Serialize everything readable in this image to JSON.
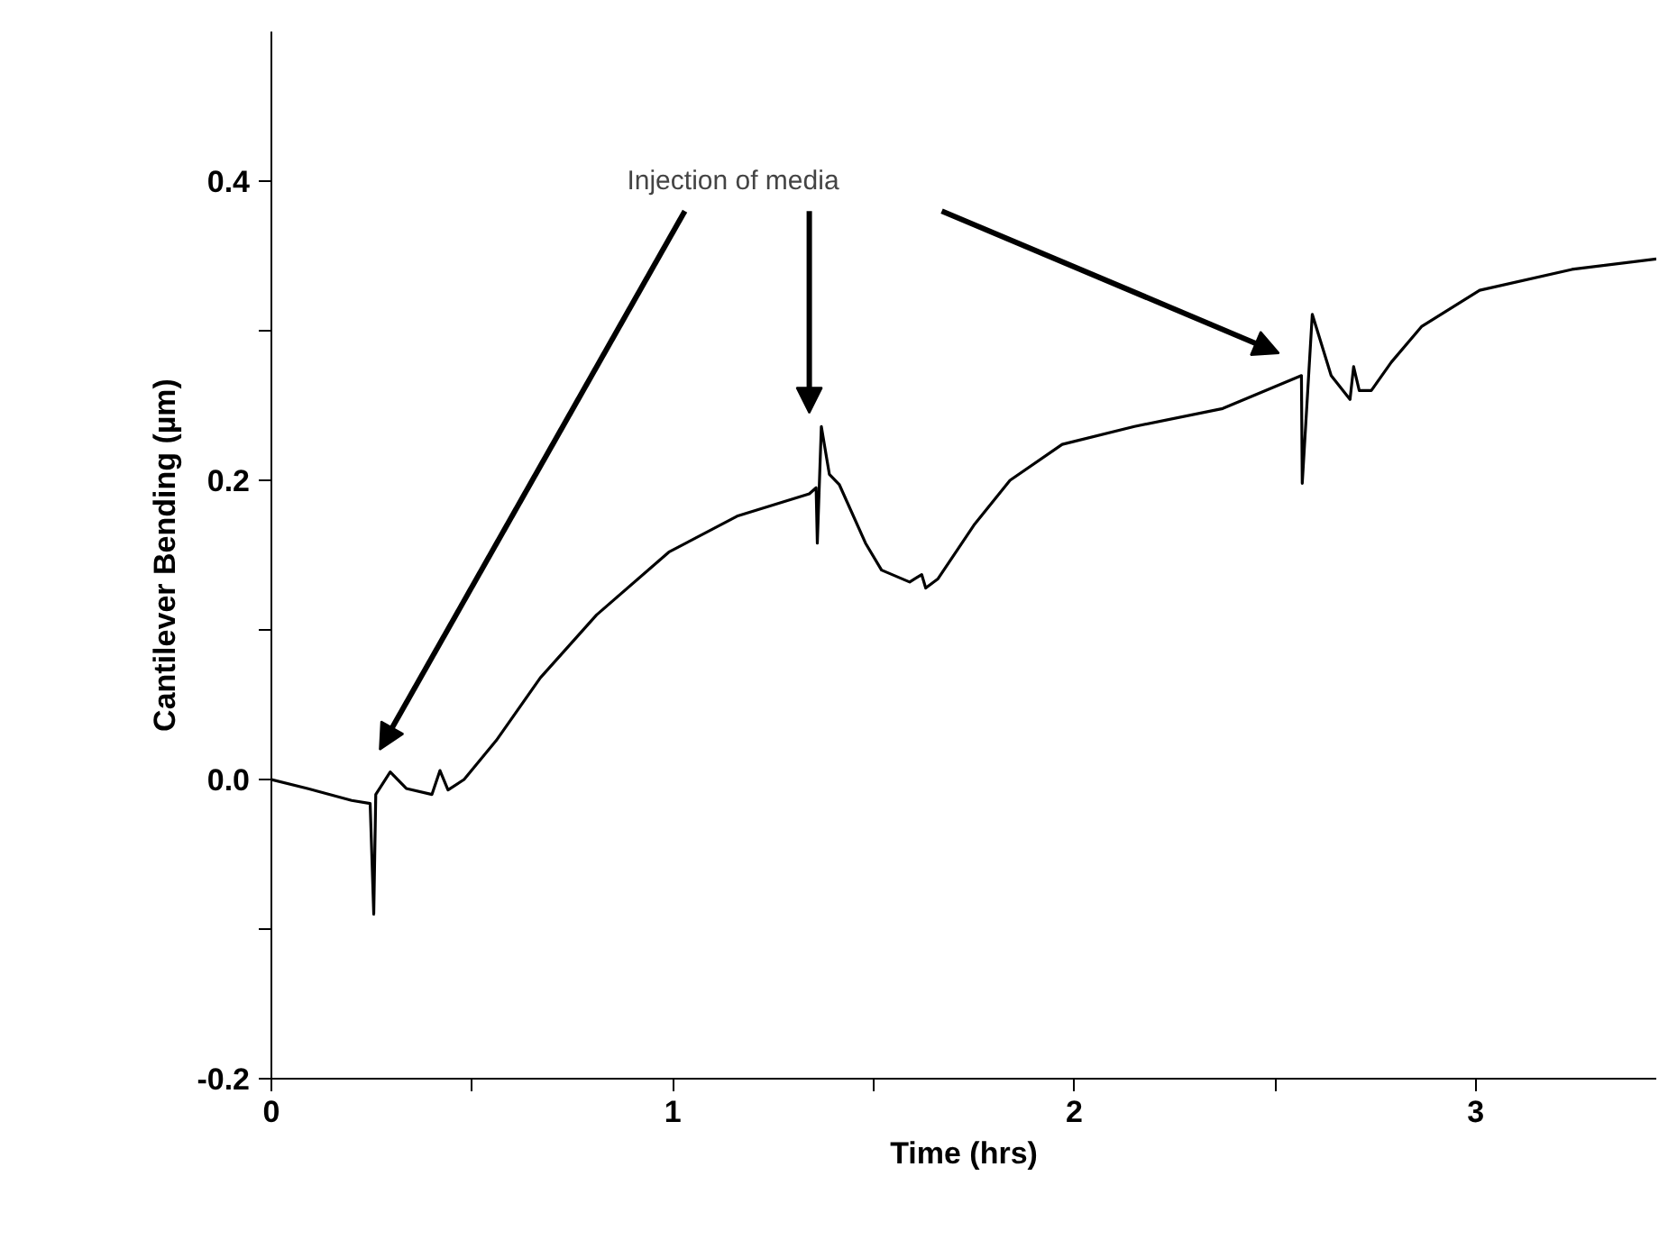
{
  "chart_data": {
    "type": "line",
    "xlabel": "Time (hrs)",
    "ylabel": "Cantilever Bending (µm)",
    "annotations": [
      "Injection of media"
    ],
    "xlim": [
      0,
      3.45
    ],
    "ylim": [
      -0.2,
      0.5
    ],
    "xticks": [
      0,
      {
        "value": 0.5,
        "label": null
      },
      1,
      {
        "value": 1.5,
        "label": null
      },
      2,
      {
        "value": 2.5,
        "label": null
      },
      3
    ],
    "yticks": [
      {
        "value": -0.2,
        "label": "-0.2"
      },
      {
        "value": -0.1,
        "label": null
      },
      {
        "value": 0,
        "label": "0.0"
      },
      {
        "value": 0.1,
        "label": null
      },
      0.2,
      {
        "value": 0.3,
        "label": null
      },
      0.4
    ],
    "grid": false,
    "marker": "none",
    "line_style": "solid",
    "series": [
      {
        "color": "#000000",
        "x": [
          0,
          0.09,
          0.2,
          0.246,
          0.255,
          0.26,
          0.296,
          0.336,
          0.4,
          0.42,
          0.44,
          0.48,
          0.56,
          0.67,
          0.81,
          0.99,
          1.16,
          1.34,
          1.357,
          1.36,
          1.37,
          1.39,
          1.415,
          1.48,
          1.52,
          1.59,
          1.62,
          1.63,
          1.66,
          1.75,
          1.84,
          1.97,
          2.15,
          2.37,
          2.566,
          2.568,
          2.593,
          2.64,
          2.687,
          2.696,
          2.71,
          2.74,
          2.79,
          2.866,
          3.01,
          3.24,
          3.45
        ],
        "values": [
          0,
          -0.006,
          -0.014,
          -0.016,
          -0.09,
          -0.01,
          0.005,
          -0.006,
          -0.01,
          0.006,
          -0.007,
          0,
          0.026,
          0.068,
          0.11,
          0.152,
          0.176,
          0.191,
          0.195,
          0.158,
          0.236,
          0.204,
          0.197,
          0.158,
          0.14,
          0.132,
          0.137,
          0.128,
          0.134,
          0.17,
          0.2,
          0.224,
          0.236,
          0.248,
          0.27,
          0.198,
          0.311,
          0.27,
          0.254,
          0.276,
          0.26,
          0.26,
          0.279,
          0.303,
          0.327,
          0.341,
          0.348
        ]
      }
    ]
  }
}
